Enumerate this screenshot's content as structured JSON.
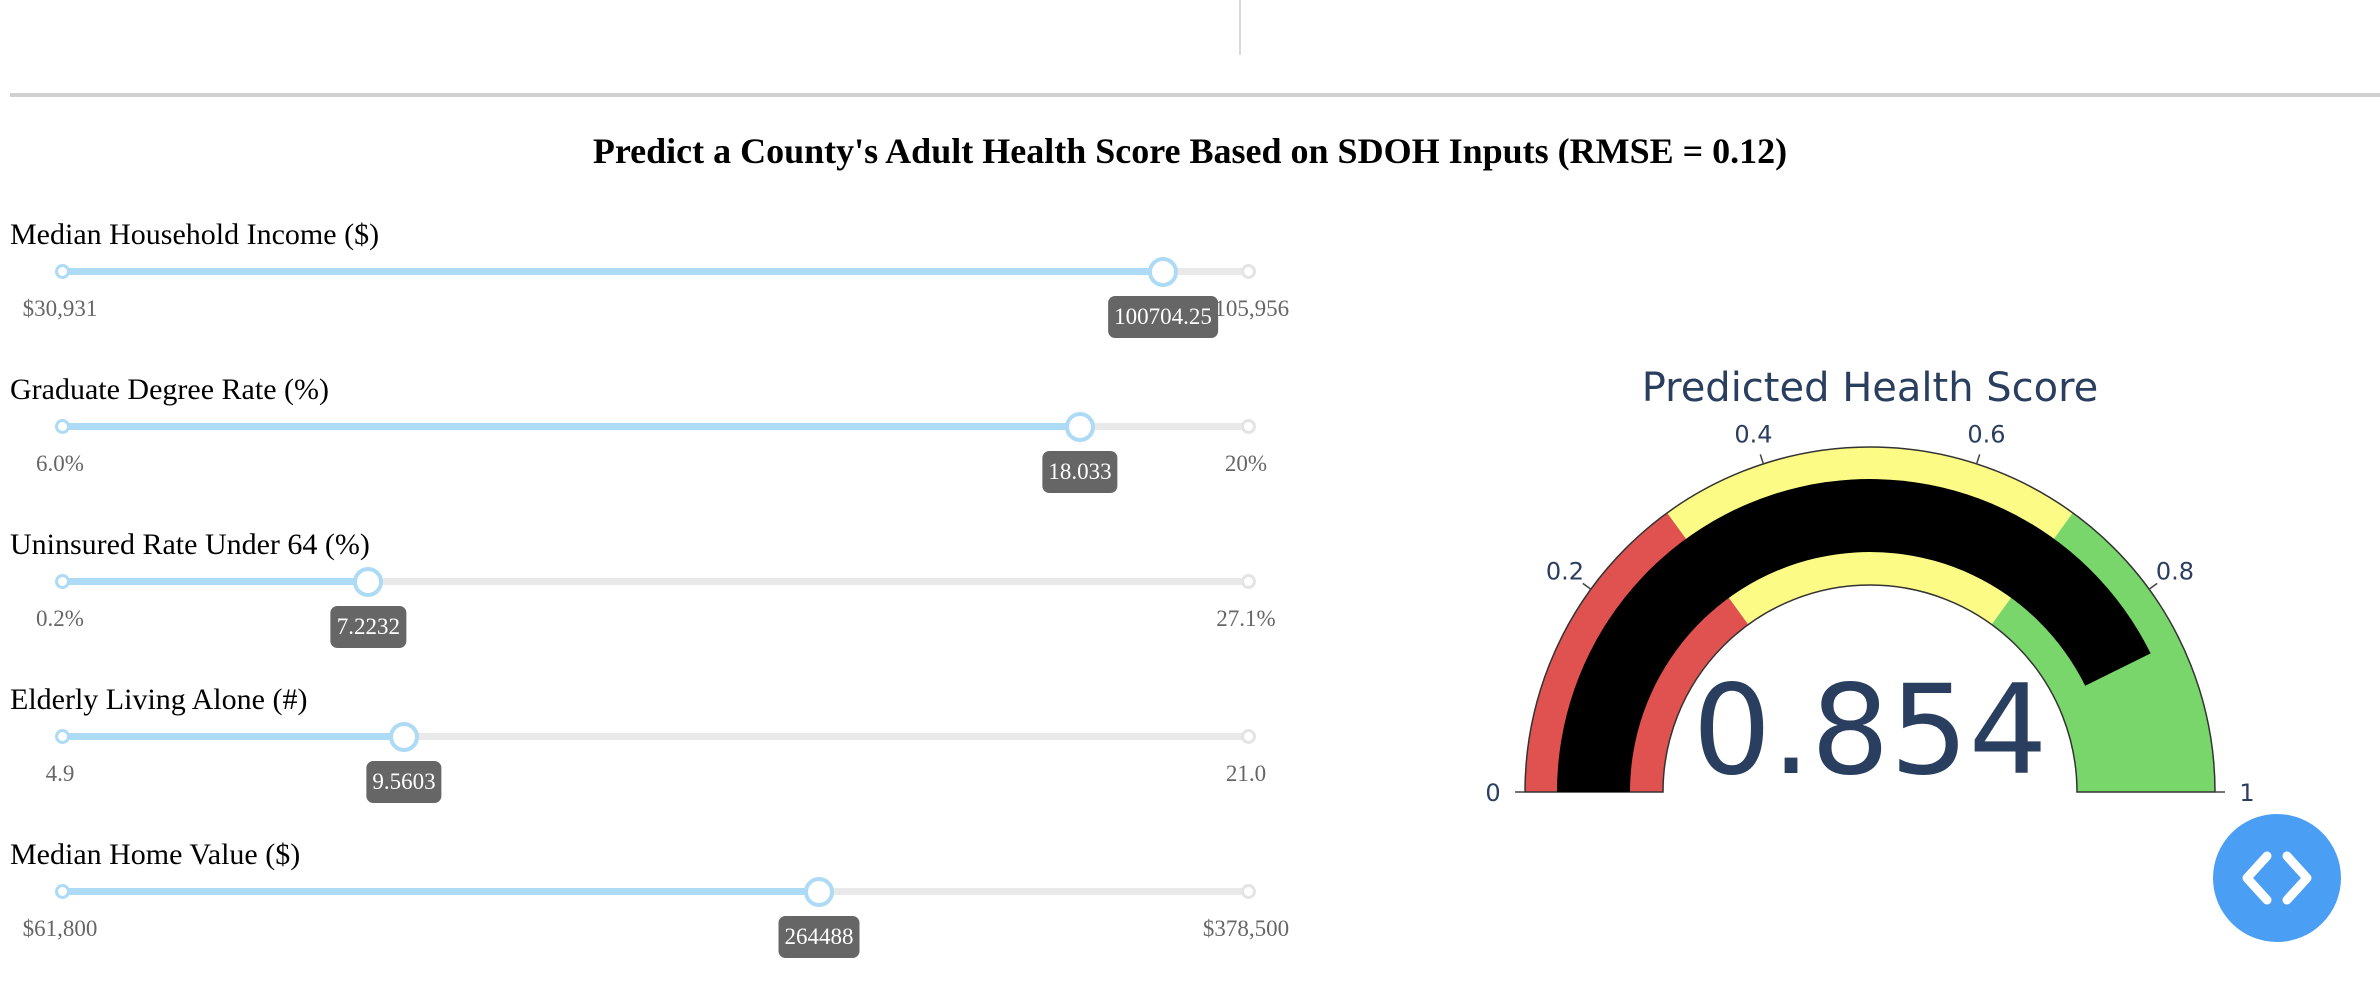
{
  "title": "Predict a County's Adult Health Score Based on SDOH Inputs (RMSE = 0.12)",
  "sliders": [
    {
      "label": "Median Household Income ($)",
      "min_label": "$30,931",
      "max_label": "$105,956",
      "value_label": "100704.25",
      "fraction": 0.93
    },
    {
      "label": "Graduate Degree Rate (%)",
      "min_label": "6.0%",
      "max_label": "20%",
      "value_label": "18.033",
      "fraction": 0.86
    },
    {
      "label": "Uninsured Rate Under 64 (%)",
      "min_label": "0.2%",
      "max_label": "27.1%",
      "value_label": "7.2232",
      "fraction": 0.26
    },
    {
      "label": "Elderly Living Alone (#)",
      "min_label": "4.9",
      "max_label": "21.0",
      "value_label": "9.5603",
      "fraction": 0.29
    },
    {
      "label": "Median Home Value ($)",
      "min_label": "$61,800",
      "max_label": "$378,500",
      "value_label": "264488",
      "fraction": 0.64
    }
  ],
  "gauge": {
    "title": "Predicted Health Score",
    "value": 0.854,
    "value_label": "0.854",
    "range": [
      0,
      1
    ],
    "ticks": [
      "0",
      "0.2",
      "0.4",
      "0.6",
      "0.8",
      "1"
    ],
    "tick_values": [
      0,
      0.2,
      0.4,
      0.6,
      0.8,
      1
    ],
    "steps": [
      {
        "range": [
          0,
          0.3
        ],
        "color": "#e0524f"
      },
      {
        "range": [
          0.3,
          0.7
        ],
        "color": "#fbfb85"
      },
      {
        "range": [
          0.7,
          1
        ],
        "color": "#78d66a"
      }
    ],
    "bar_color": "#000000",
    "text_color": "#2a3f5f"
  },
  "code_button_color": "#4a9ff5"
}
